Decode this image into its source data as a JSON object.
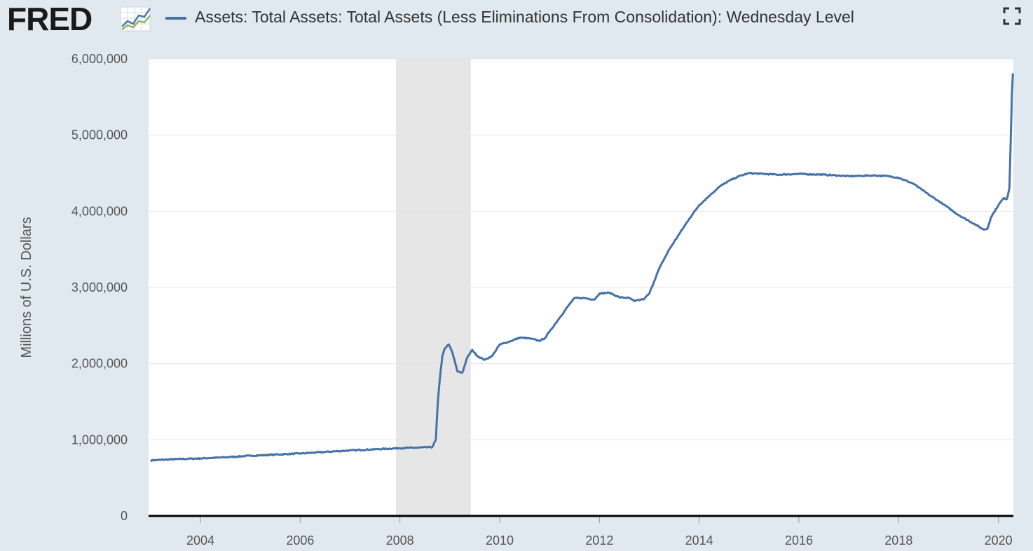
{
  "header": {
    "logo_text": "FRED",
    "legend_label": "Assets: Total Assets: Total Assets (Less Eliminations From Consolidation): Wednesday Level",
    "series_color": "#4572a7"
  },
  "chart_data": {
    "type": "line",
    "title": "",
    "xlabel": "",
    "ylabel": "Millions of U.S. Dollars",
    "xlim": [
      2002.96,
      2020.3
    ],
    "ylim": [
      0,
      6000000
    ],
    "x_ticks": [
      2004,
      2006,
      2008,
      2010,
      2012,
      2014,
      2016,
      2018,
      2020
    ],
    "x_tick_labels": [
      "2004",
      "2006",
      "2008",
      "2010",
      "2012",
      "2014",
      "2016",
      "2018",
      "2020"
    ],
    "y_ticks": [
      0,
      1000000,
      2000000,
      3000000,
      4000000,
      5000000,
      6000000
    ],
    "y_tick_labels": [
      "0",
      "1,000,000",
      "2,000,000",
      "3,000,000",
      "4,000,000",
      "5,000,000",
      "6,000,000"
    ],
    "grid": true,
    "recession_shading": [
      [
        2007.92,
        2009.42
      ]
    ],
    "series": [
      {
        "name": "Assets: Total Assets: Total Assets (Less Eliminations From Consolidation): Wednesday Level",
        "color": "#4572a7",
        "points": [
          [
            2003.0,
            730000
          ],
          [
            2003.5,
            745000
          ],
          [
            2004.0,
            755000
          ],
          [
            2004.5,
            770000
          ],
          [
            2005.0,
            790000
          ],
          [
            2005.5,
            805000
          ],
          [
            2006.0,
            820000
          ],
          [
            2006.5,
            840000
          ],
          [
            2007.0,
            860000
          ],
          [
            2007.5,
            875000
          ],
          [
            2008.0,
            890000
          ],
          [
            2008.3,
            895000
          ],
          [
            2008.65,
            905000
          ],
          [
            2008.72,
            1000000
          ],
          [
            2008.76,
            1500000
          ],
          [
            2008.8,
            1800000
          ],
          [
            2008.85,
            2100000
          ],
          [
            2008.9,
            2200000
          ],
          [
            2008.98,
            2250000
          ],
          [
            2009.05,
            2150000
          ],
          [
            2009.15,
            1900000
          ],
          [
            2009.25,
            1880000
          ],
          [
            2009.35,
            2080000
          ],
          [
            2009.45,
            2180000
          ],
          [
            2009.55,
            2100000
          ],
          [
            2009.7,
            2050000
          ],
          [
            2009.85,
            2100000
          ],
          [
            2010.0,
            2250000
          ],
          [
            2010.2,
            2290000
          ],
          [
            2010.4,
            2340000
          ],
          [
            2010.6,
            2330000
          ],
          [
            2010.8,
            2300000
          ],
          [
            2010.9,
            2330000
          ],
          [
            2011.0,
            2420000
          ],
          [
            2011.2,
            2600000
          ],
          [
            2011.4,
            2780000
          ],
          [
            2011.5,
            2860000
          ],
          [
            2011.7,
            2860000
          ],
          [
            2011.9,
            2840000
          ],
          [
            2012.0,
            2920000
          ],
          [
            2012.2,
            2930000
          ],
          [
            2012.4,
            2870000
          ],
          [
            2012.6,
            2860000
          ],
          [
            2012.7,
            2820000
          ],
          [
            2012.9,
            2850000
          ],
          [
            2013.0,
            2920000
          ],
          [
            2013.2,
            3250000
          ],
          [
            2013.4,
            3500000
          ],
          [
            2013.6,
            3700000
          ],
          [
            2013.8,
            3900000
          ],
          [
            2014.0,
            4080000
          ],
          [
            2014.2,
            4200000
          ],
          [
            2014.4,
            4320000
          ],
          [
            2014.6,
            4400000
          ],
          [
            2014.8,
            4460000
          ],
          [
            2015.0,
            4500000
          ],
          [
            2015.3,
            4490000
          ],
          [
            2015.6,
            4480000
          ],
          [
            2016.0,
            4490000
          ],
          [
            2016.5,
            4480000
          ],
          [
            2017.0,
            4460000
          ],
          [
            2017.5,
            4470000
          ],
          [
            2017.8,
            4460000
          ],
          [
            2018.0,
            4440000
          ],
          [
            2018.3,
            4360000
          ],
          [
            2018.6,
            4220000
          ],
          [
            2018.9,
            4090000
          ],
          [
            2019.2,
            3950000
          ],
          [
            2019.5,
            3840000
          ],
          [
            2019.7,
            3760000
          ],
          [
            2019.78,
            3770000
          ],
          [
            2019.85,
            3920000
          ],
          [
            2020.0,
            4080000
          ],
          [
            2020.1,
            4170000
          ],
          [
            2020.17,
            4160000
          ],
          [
            2020.22,
            4300000
          ],
          [
            2020.25,
            5000000
          ],
          [
            2020.27,
            5550000
          ],
          [
            2020.29,
            5810000
          ]
        ]
      }
    ]
  }
}
